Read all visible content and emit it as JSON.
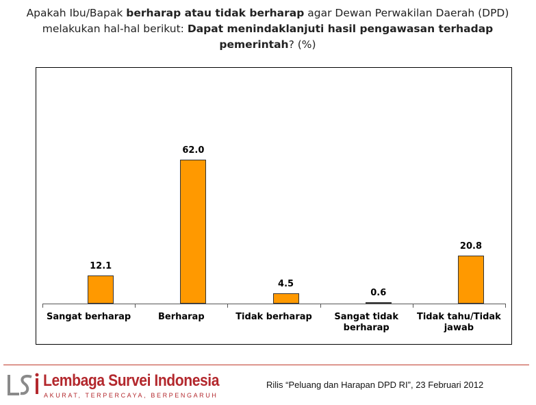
{
  "chart_data": {
    "type": "bar",
    "title_parts": [
      "Apakah Ibu/Bapak ",
      "berharap atau tidak berharap",
      " agar Dewan Perwakilan Daerah (DPD) melakukan hal-hal berikut: ",
      "Dapat menindaklanjuti hasil pengawasan terhadap pemerintah",
      "? (%)"
    ],
    "categories": [
      "Sangat berharap",
      "Berharap",
      "Tidak berharap",
      "Sangat tidak berharap",
      "Tidak tahu/Tidak jawab"
    ],
    "values": [
      12.1,
      62.0,
      4.5,
      0.6,
      20.8
    ],
    "value_labels": [
      "12.1",
      "62.0",
      "4.5",
      "0.6",
      "20.8"
    ],
    "color": "#ff9900"
  },
  "footer": {
    "organization": "Lembaga Survei Indonesia",
    "tagline": "AKURAT, TERPERCAYA, BERPENGARUH",
    "release": "Rilis “Peluang dan Harapan DPD RI”, 23 Februari 2012"
  }
}
